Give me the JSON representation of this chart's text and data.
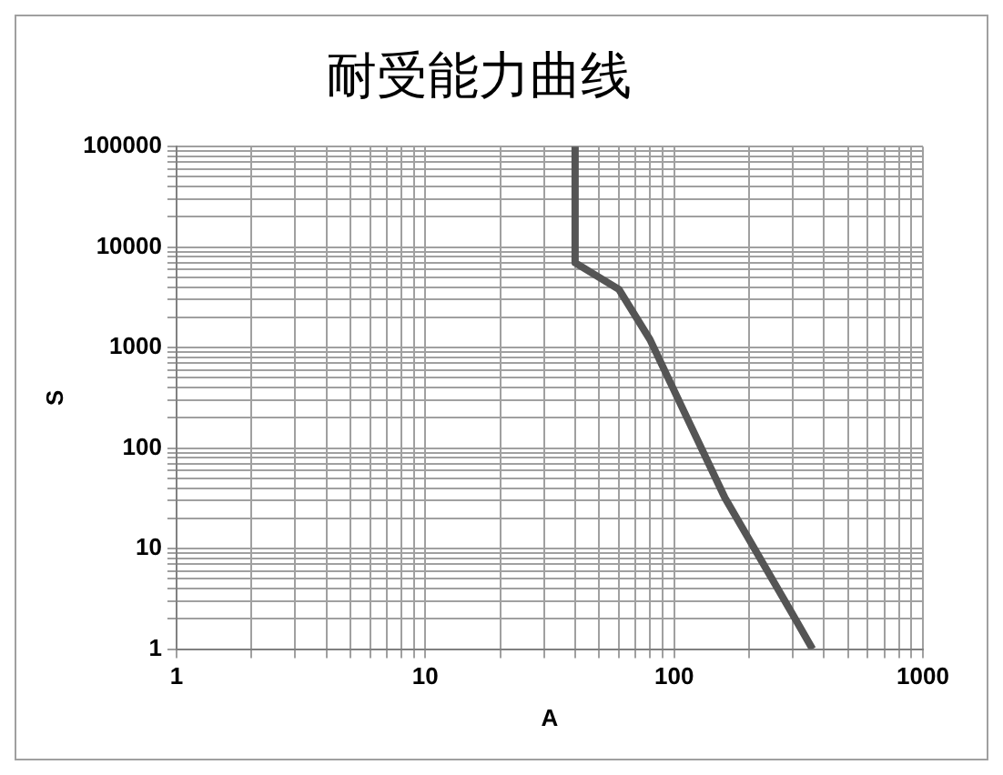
{
  "chart_data": {
    "type": "line",
    "title": "耐受能力曲线",
    "xlabel": "A",
    "ylabel": "S",
    "log": "xy",
    "grid": true,
    "legend": false,
    "marker": "none",
    "line_style": "solid",
    "x": [
      40,
      40,
      60,
      80,
      160,
      300,
      360
    ],
    "series": [
      {
        "color": "#555555",
        "values": [
          100000,
          7000,
          3800,
          1200,
          32,
          2.2,
          1
        ]
      }
    ],
    "xlim": [
      1,
      1000
    ],
    "xticks": [
      1,
      {
        "value": 2,
        "label": null
      },
      {
        "value": 3,
        "label": null
      },
      {
        "value": 4,
        "label": null
      },
      {
        "value": 5,
        "label": null
      },
      {
        "value": 6,
        "label": null
      },
      {
        "value": 7,
        "label": null
      },
      {
        "value": 8,
        "label": null
      },
      {
        "value": 9,
        "label": null
      },
      10,
      {
        "value": 20,
        "label": null
      },
      {
        "value": 30,
        "label": null
      },
      {
        "value": 40,
        "label": null
      },
      {
        "value": 50,
        "label": null
      },
      {
        "value": 60,
        "label": null
      },
      {
        "value": 70,
        "label": null
      },
      {
        "value": 80,
        "label": null
      },
      {
        "value": 90,
        "label": null
      },
      100,
      {
        "value": 200,
        "label": null
      },
      {
        "value": 300,
        "label": null
      },
      {
        "value": 400,
        "label": null
      },
      {
        "value": 500,
        "label": null
      },
      {
        "value": 600,
        "label": null
      },
      {
        "value": 700,
        "label": null
      },
      {
        "value": 800,
        "label": null
      },
      {
        "value": 900,
        "label": null
      },
      1000
    ],
    "ylim": [
      1,
      100000
    ],
    "yticks": [
      1,
      {
        "value": 2,
        "label": null
      },
      {
        "value": 3,
        "label": null
      },
      {
        "value": 4,
        "label": null
      },
      {
        "value": 5,
        "label": null
      },
      {
        "value": 6,
        "label": null
      },
      {
        "value": 7,
        "label": null
      },
      {
        "value": 8,
        "label": null
      },
      {
        "value": 9,
        "label": null
      },
      10,
      {
        "value": 20,
        "label": null
      },
      {
        "value": 30,
        "label": null
      },
      {
        "value": 40,
        "label": null
      },
      {
        "value": 50,
        "label": null
      },
      {
        "value": 60,
        "label": null
      },
      {
        "value": 70,
        "label": null
      },
      {
        "value": 80,
        "label": null
      },
      {
        "value": 90,
        "label": null
      },
      100,
      {
        "value": 200,
        "label": null
      },
      {
        "value": 300,
        "label": null
      },
      {
        "value": 400,
        "label": null
      },
      {
        "value": 500,
        "label": null
      },
      {
        "value": 600,
        "label": null
      },
      {
        "value": 700,
        "label": null
      },
      {
        "value": 800,
        "label": null
      },
      {
        "value": 900,
        "label": null
      },
      1000,
      {
        "value": 2000,
        "label": null
      },
      {
        "value": 3000,
        "label": null
      },
      {
        "value": 4000,
        "label": null
      },
      {
        "value": 5000,
        "label": null
      },
      {
        "value": 6000,
        "label": null
      },
      {
        "value": 7000,
        "label": null
      },
      {
        "value": 8000,
        "label": null
      },
      {
        "value": 9000,
        "label": null
      },
      10000,
      {
        "value": 20000,
        "label": null
      },
      {
        "value": 30000,
        "label": null
      },
      {
        "value": 40000,
        "label": null
      },
      {
        "value": 50000,
        "label": null
      },
      {
        "value": 60000,
        "label": null
      },
      {
        "value": 70000,
        "label": null
      },
      {
        "value": 80000,
        "label": null
      },
      {
        "value": 90000,
        "label": null
      },
      100000
    ]
  }
}
